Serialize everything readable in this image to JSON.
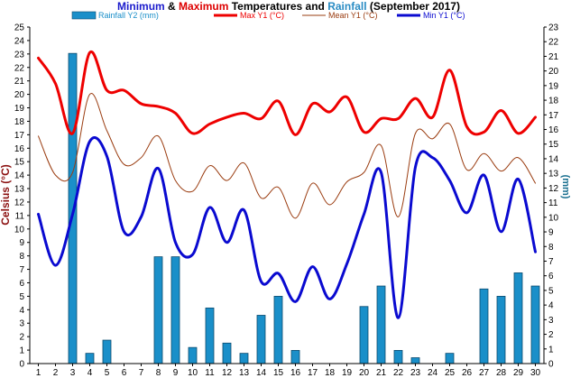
{
  "title_parts": [
    {
      "text": "Minimum",
      "color": "#1a1acc"
    },
    {
      "text": " & ",
      "color": "#000000"
    },
    {
      "text": "Maximum",
      "color": "#dd0000"
    },
    {
      "text": " Temperatures and ",
      "color": "#000000"
    },
    {
      "text": "Rainfall",
      "color": "#2a8cc4"
    },
    {
      "text": " (September 2017)",
      "color": "#000000"
    }
  ],
  "chart_data": {
    "type": "bar+line",
    "title": "Minimum & Maximum Temperatures and Rainfall (September 2017)",
    "x": [
      1,
      2,
      3,
      4,
      5,
      6,
      7,
      8,
      9,
      10,
      11,
      12,
      13,
      14,
      15,
      16,
      17,
      18,
      19,
      20,
      21,
      22,
      23,
      24,
      25,
      26,
      27,
      28,
      29,
      30
    ],
    "y_left": {
      "label": "Celsius (°C)",
      "min": 0,
      "max": 25,
      "step": 1,
      "color": "#8b1010"
    },
    "y_right": {
      "label": "(mm)",
      "min": 0,
      "max": 23,
      "step": 1,
      "color": "#1a7090"
    },
    "legend_position": "top",
    "grid": false,
    "bars": {
      "name": "Rainfall Y2 (mm)",
      "axis": "right",
      "color": "#1a8fc9",
      "edge": "#0b4a6e",
      "values": [
        0,
        0,
        21.2,
        0.7,
        1.6,
        0,
        0,
        7.3,
        7.3,
        1.1,
        3.8,
        1.4,
        0.7,
        3.3,
        4.6,
        0.9,
        0,
        0,
        0,
        3.9,
        5.3,
        0.9,
        0.4,
        0,
        0.7,
        0,
        5.1,
        4.6,
        6.2,
        5.3
      ]
    },
    "series": [
      {
        "name": "Max Y1 (°C)",
        "axis": "left",
        "color": "#ee0000",
        "width": 3,
        "values": [
          22.7,
          20.8,
          17.1,
          23.1,
          20.3,
          20.3,
          19.3,
          19.1,
          18.6,
          17.1,
          17.8,
          18.3,
          18.6,
          18.2,
          19.5,
          17.0,
          19.3,
          18.7,
          19.8,
          17.2,
          18.2,
          18.2,
          19.7,
          18.3,
          21.8,
          17.6,
          17.2,
          18.8,
          17.1,
          18.3
        ]
      },
      {
        "name": "Mean Y1 (°C)",
        "axis": "left",
        "color": "#9a3c10",
        "width": 1,
        "values": [
          16.9,
          14.0,
          14.2,
          20.0,
          17.3,
          14.8,
          15.3,
          16.9,
          13.6,
          12.8,
          14.7,
          13.6,
          14.9,
          12.3,
          13.1,
          10.8,
          13.4,
          11.8,
          13.5,
          14.2,
          16.2,
          10.9,
          17.1,
          16.7,
          17.8,
          14.4,
          15.6,
          14.3,
          15.3,
          13.4
        ]
      },
      {
        "name": "Min Y1 (°C)",
        "axis": "left",
        "color": "#0a0ad0",
        "width": 3,
        "values": [
          11.1,
          7.3,
          11.1,
          16.5,
          15.4,
          9.8,
          10.9,
          14.5,
          9.0,
          8.1,
          11.6,
          9.0,
          11.4,
          6.1,
          6.7,
          4.6,
          7.2,
          4.8,
          7.4,
          11.1,
          14.2,
          3.4,
          14.6,
          15.3,
          13.6,
          11.2,
          14.0,
          9.8,
          13.7,
          8.3
        ]
      }
    ],
    "legend": [
      {
        "label": "Rainfall Y2 (mm)",
        "type": "bar",
        "color": "#1a8fc9"
      },
      {
        "label": "Max Y1 (°C)",
        "type": "line",
        "color": "#ee0000"
      },
      {
        "label": "Mean Y1 (°C)",
        "type": "line",
        "color": "#9a3c10"
      },
      {
        "label": "Min Y1 (°C)",
        "type": "line",
        "color": "#0a0ad0"
      }
    ]
  }
}
